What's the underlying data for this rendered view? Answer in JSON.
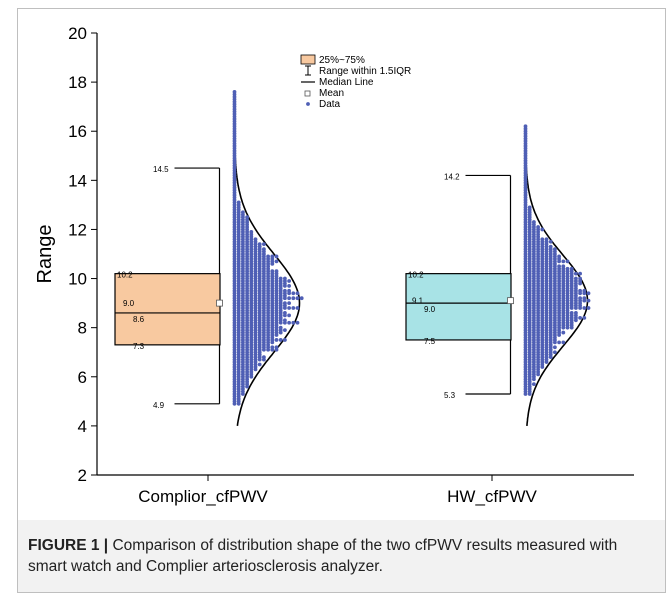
{
  "chart_data": {
    "type": "box",
    "ylabel": "Range",
    "xlabel": "",
    "ylim": [
      2,
      20
    ],
    "yticks": [
      2,
      4,
      6,
      8,
      10,
      12,
      14,
      16,
      18,
      20
    ],
    "categories": [
      "Complior_cfPWV",
      "HW_cfPWV"
    ],
    "boxes": [
      {
        "category": "Complior_cfPWV",
        "q1": 7.3,
        "median": 8.6,
        "q3": 10.2,
        "mean": 9.0,
        "whisker_low": 4.9,
        "whisker_high": 14.5,
        "color": "#f8c9a0",
        "labels": [
          "14.5",
          "10.2",
          "9.0",
          "8.6",
          "7.3",
          "4.9"
        ],
        "data_min": 4.9,
        "data_max": 17.6
      },
      {
        "category": "HW_cfPWV",
        "q1": 7.5,
        "median": 9.0,
        "q3": 10.2,
        "mean": 9.1,
        "whisker_low": 5.3,
        "whisker_high": 14.2,
        "color": "#a8e3e6",
        "labels": [
          "14.2",
          "10.2",
          "9.1",
          "9.0",
          "7.5",
          "5.3"
        ],
        "data_min": 5.3,
        "data_max": 16.2
      }
    ],
    "legend": {
      "position": "top-center",
      "entries": [
        "25%~75%",
        "Range within 1.5IQR",
        "Median Line",
        "Mean",
        "Data"
      ]
    },
    "data_color": "#4f5fb5"
  },
  "caption": {
    "label": "FIGURE 1 |",
    "text": " Comparison of distribution shape of the two cfPWV results measured with smart watch and Complier arteriosclerosis analyzer."
  }
}
